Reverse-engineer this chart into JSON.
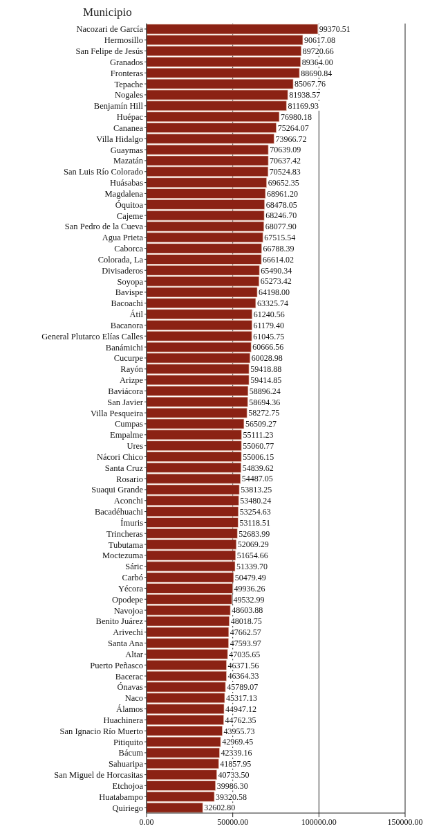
{
  "chart_data": {
    "type": "bar",
    "orientation": "horizontal",
    "ylabel": "Municipio",
    "categories": [
      "Nacozari de García",
      "Hermosillo",
      "San Felipe de Jesús",
      "Granados",
      "Fronteras",
      "Tepache",
      "Nogales",
      "Benjamín Hill",
      "Huépac",
      "Cananea",
      "Villa Hidalgo",
      "Guaymas",
      "Mazatán",
      "San Luis Río Colorado",
      "Huásabas",
      "Magdalena",
      "Óquitoa",
      "Cajeme",
      "San Pedro de la Cueva",
      "Agua Prieta",
      "Caborca",
      "Colorada, La",
      "Divisaderos",
      "Soyopa",
      "Bavispe",
      "Bacoachi",
      "Átil",
      "Bacanora",
      "General Plutarco Elías Calles",
      "Banámichi",
      "Cucurpe",
      "Rayón",
      "Arizpe",
      "Baviácora",
      "San Javier",
      "Villa Pesqueira",
      "Cumpas",
      "Empalme",
      "Ures",
      "Nácori Chico",
      "Santa Cruz",
      "Rosario",
      "Suaqui Grande",
      "Aconchi",
      "Bacadéhuachi",
      "Ímuris",
      "Trincheras",
      "Tubutama",
      "Moctezuma",
      "Sáric",
      "Carbó",
      "Yécora",
      "Opodepe",
      "Navojoa",
      "Benito Juárez",
      "Arivechi",
      "Santa Ana",
      "Altar",
      "Puerto Peñasco",
      "Bacerac",
      "Ónavas",
      "Naco",
      "Álamos",
      "Huachinera",
      "San Ignacio Río Muerto",
      "Pitiquito",
      "Bácum",
      "Sahuaripa",
      "San Miguel de Horcasitas",
      "Etchojoa",
      "Huatabampo",
      "Quiriego"
    ],
    "values": [
      99370.51,
      90617.08,
      89720.66,
      89364.0,
      88690.84,
      85067.76,
      81938.57,
      81169.93,
      76980.18,
      75264.07,
      73966.72,
      70639.09,
      70637.42,
      70524.83,
      69652.35,
      68961.2,
      68478.05,
      68246.7,
      68077.9,
      67515.54,
      66788.39,
      66614.02,
      65490.34,
      65273.42,
      64198.0,
      63325.74,
      61240.56,
      61179.4,
      61045.75,
      60666.56,
      60028.98,
      59418.88,
      59414.85,
      58896.24,
      58694.36,
      58272.75,
      56509.27,
      55111.23,
      55060.77,
      55006.15,
      54839.62,
      54487.05,
      53813.25,
      53480.24,
      53254.63,
      53118.51,
      52683.99,
      52069.29,
      51654.66,
      51339.7,
      50479.49,
      49936.26,
      49532.99,
      48603.88,
      48018.75,
      47662.57,
      47593.97,
      47035.65,
      46371.56,
      46364.33,
      45789.07,
      45317.13,
      44947.12,
      44762.35,
      43955.73,
      42969.45,
      42339.16,
      41857.95,
      40733.5,
      39986.3,
      39320.58,
      32602.8
    ],
    "value_labels": [
      "99370.51",
      "90617.08",
      "89720.66",
      "89364.00",
      "88690.84",
      "85067.76",
      "81938.57",
      "81169.93",
      "76980.18",
      "75264.07",
      "73966.72",
      "70639.09",
      "70637.42",
      "70524.83",
      "69652.35",
      "68961.20",
      "68478.05",
      "68246.70",
      "68077.90",
      "67515.54",
      "66788.39",
      "66614.02",
      "65490.34",
      "65273.42",
      "64198.00",
      "63325.74",
      "61240.56",
      "61179.40",
      "61045.75",
      "60666.56",
      "60028.98",
      "59418.88",
      "59414.85",
      "58896.24",
      "58694.36",
      "58272.75",
      "56509.27",
      "55111.23",
      "55060.77",
      "55006.15",
      "54839.62",
      "54487.05",
      "53813.25",
      "53480.24",
      "53254.63",
      "53118.51",
      "52683.99",
      "52069.29",
      "51654.66",
      "51339.70",
      "50479.49",
      "49936.26",
      "49532.99",
      "48603.88",
      "48018.75",
      "47662.57",
      "47593.97",
      "47035.65",
      "46371.56",
      "46364.33",
      "45789.07",
      "45317.13",
      "44947.12",
      "44762.35",
      "43955.73",
      "42969.45",
      "42339.16",
      "41857.95",
      "40733.50",
      "39986.30",
      "39320.58",
      "32602.80"
    ],
    "color": "#8b2214",
    "xlim": [
      0,
      150000
    ],
    "xticks": [
      {
        "value": 0,
        "label": "0.00"
      },
      {
        "value": 50000,
        "label": "50000.00"
      },
      {
        "value": 100000,
        "label": "100000.00"
      },
      {
        "value": 150000,
        "label": "150000.00"
      }
    ],
    "grid": "x"
  }
}
